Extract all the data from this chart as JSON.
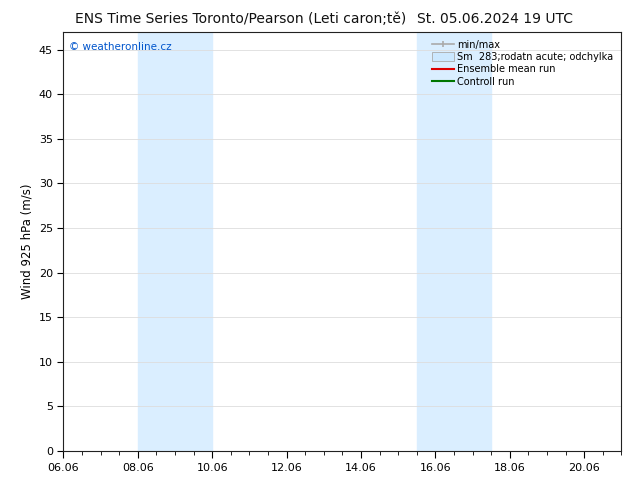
{
  "title": "ENS Time Series Toronto/Pearson (Leti caron;tě)",
  "date_str": "St. 05.06.2024 19 UTC",
  "ylabel": "Wind 925 hPa (m/s)",
  "watermark": "© weatheronline.cz",
  "legend_labels": [
    "min/max",
    "Sm  283;rodatn acute; odchylka",
    "Ensemble mean run",
    "Controll run"
  ],
  "xlim_start": 0,
  "xlim_end": 15,
  "ylim": [
    0,
    47
  ],
  "yticks": [
    0,
    5,
    10,
    15,
    20,
    25,
    30,
    35,
    40,
    45
  ],
  "xtick_labels": [
    "06.06",
    "08.06",
    "10.06",
    "12.06",
    "14.06",
    "16.06",
    "18.06",
    "20.06"
  ],
  "xtick_positions": [
    0,
    2,
    4,
    6,
    8,
    10,
    12,
    14
  ],
  "shaded_regions": [
    {
      "xmin": 2.0,
      "xmax": 4.0,
      "color": "#daeeff"
    },
    {
      "xmin": 9.5,
      "xmax": 11.5,
      "color": "#daeeff"
    }
  ],
  "background_color": "#ffffff",
  "plot_bg_color": "#ffffff",
  "grid_color": "#dddddd",
  "title_fontsize": 10,
  "axis_fontsize": 8.5,
  "tick_fontsize": 8,
  "watermark_color": "#0055cc",
  "legend_color_minmax": "#aaaaaa",
  "legend_color_sm": "#cce8ff",
  "legend_color_ensemble": "#dd0000",
  "legend_color_control": "#007700"
}
